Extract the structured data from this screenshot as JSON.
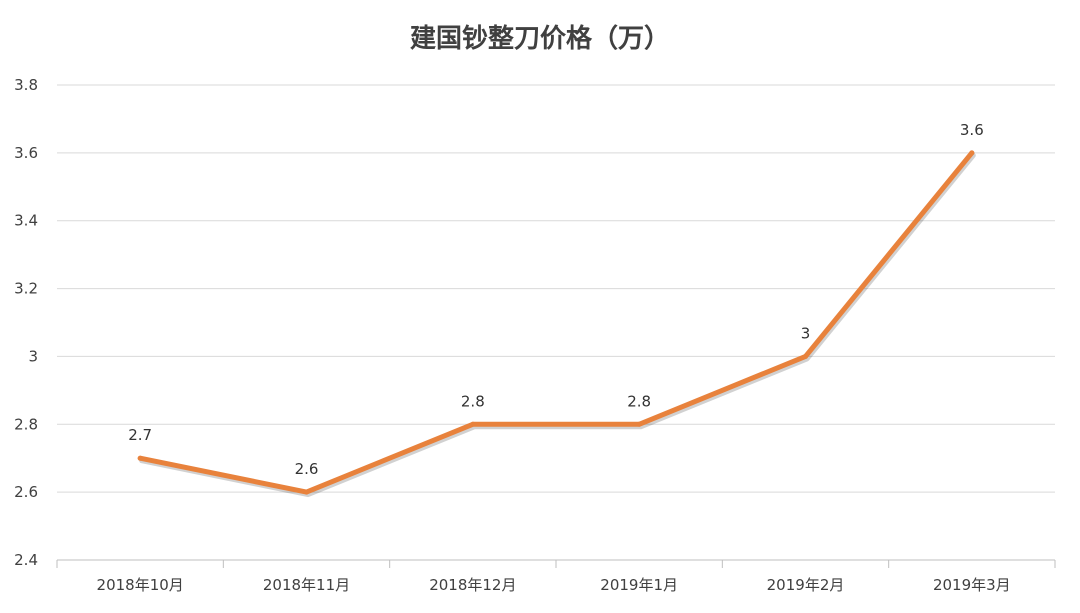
{
  "chart_data": {
    "type": "line",
    "title": "建国钞整刀价格（万）",
    "xlabel": "",
    "ylabel": "",
    "categories": [
      "2018年10月",
      "2018年11月",
      "2018年12月",
      "2019年1月",
      "2019年2月",
      "2019年3月"
    ],
    "series": [
      {
        "values": [
          2.7,
          2.6,
          2.8,
          2.8,
          3,
          3.6
        ],
        "data_labels": [
          "2.7",
          "2.6",
          "2.8",
          "2.8",
          "3",
          "3.6"
        ]
      }
    ],
    "ylim": [
      2.4,
      3.8
    ],
    "yticks": [
      2.4,
      2.6,
      2.8,
      3,
      3.2,
      3.4,
      3.6,
      3.8
    ],
    "ytick_labels": [
      "2.4",
      "2.6",
      "2.8",
      "3",
      "3.2",
      "3.4",
      "3.6",
      "3.8"
    ],
    "grid": true,
    "legend": "none",
    "colors": {
      "line": "#E8823C",
      "grid": "#D9D9D9",
      "text": "#404040"
    }
  }
}
